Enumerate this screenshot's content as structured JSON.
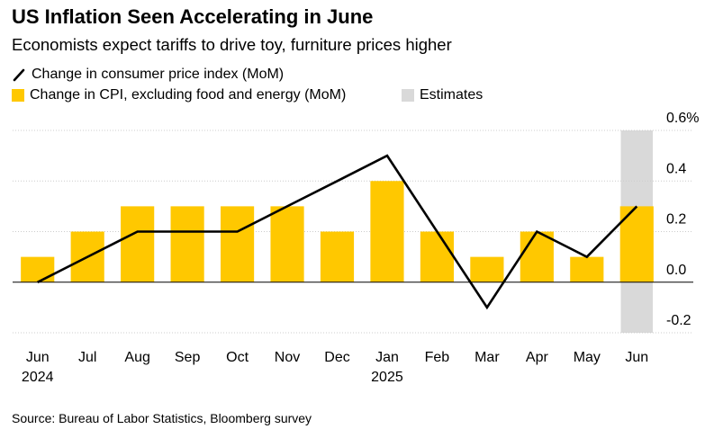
{
  "title": "US Inflation Seen Accelerating in June",
  "subtitle": "Economists expect tariffs to drive toy, furniture prices higher",
  "source": "Source: Bureau of Labor Statistics, Bloomberg survey",
  "colors": {
    "bar": "#FFC800",
    "line": "#000000",
    "estimate_band": "#D9D9D9",
    "grid": "#CCCCCC",
    "zero_line": "#000000"
  },
  "chart_data": {
    "type": "bar",
    "categories": [
      "Jun",
      "Jul",
      "Aug",
      "Sep",
      "Oct",
      "Nov",
      "Dec",
      "Jan",
      "Feb",
      "Mar",
      "Apr",
      "May",
      "Jun"
    ],
    "year_labels": [
      "2024",
      "",
      "",
      "",
      "",
      "",
      "",
      "2025",
      "",
      "",
      "",
      "",
      ""
    ],
    "series": [
      {
        "name": "Change in CPI, excluding food and energy (MoM)",
        "kind": "bar",
        "values": [
          0.1,
          0.2,
          0.3,
          0.3,
          0.3,
          0.3,
          0.2,
          0.4,
          0.2,
          0.1,
          0.2,
          0.1,
          0.3
        ]
      },
      {
        "name": "Change in consumer price index (MoM)",
        "kind": "line",
        "values": [
          0.0,
          0.1,
          0.2,
          0.2,
          0.2,
          0.3,
          0.4,
          0.5,
          0.2,
          -0.1,
          0.2,
          0.1,
          0.3
        ]
      }
    ],
    "estimates": {
      "name": "Estimates",
      "categories": [
        12
      ]
    },
    "ylim": [
      -0.2,
      0.6
    ],
    "yticks": [
      {
        "value": 0.6,
        "label": "0.6%"
      },
      {
        "value": 0.4,
        "label": "0.4"
      },
      {
        "value": 0.2,
        "label": "0.2"
      },
      {
        "value": 0.0,
        "label": "0.0"
      },
      {
        "value": -0.2,
        "label": "-0.2"
      }
    ],
    "y_axis_position": "right",
    "grid": true,
    "legend_position": "top-left"
  }
}
